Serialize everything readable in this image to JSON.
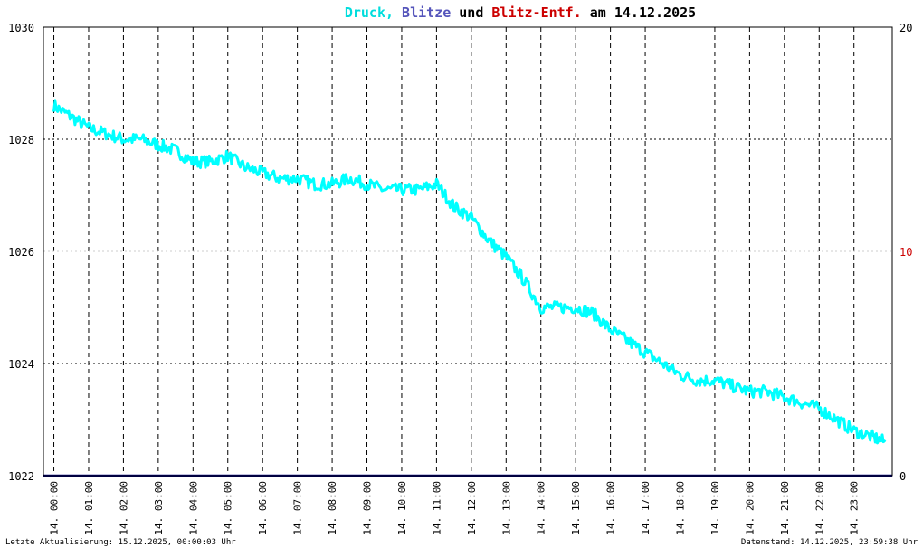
{
  "title": {
    "part1": "Druck,",
    "part2": "Blitze",
    "part3": "und",
    "part4": "Blitz-Entf.",
    "part5": "am 14.12.2025"
  },
  "colors": {
    "pressure": "#00ffff",
    "lightning": "#5555bb",
    "distance": "#cc0000",
    "text": "#000000",
    "baseline": "#000080",
    "grid": "#000000"
  },
  "footer": {
    "left": "Letzte Aktualisierung: 15.12.2025, 00:00:03 Uhr",
    "right": "Datenstand: 14.12.2025, 23:59:38 Uhr"
  },
  "chart_data": {
    "type": "line",
    "xlabel": "",
    "ylabel": "",
    "x_tick_labels": [
      "14. 00:00",
      "14. 01:00",
      "14. 02:00",
      "14. 03:00",
      "14. 04:00",
      "14. 05:00",
      "14. 06:00",
      "14. 07:00",
      "14. 08:00",
      "14. 09:00",
      "14. 10:00",
      "14. 11:00",
      "14. 12:00",
      "14. 13:00",
      "14. 14:00",
      "14. 15:00",
      "14. 16:00",
      "14. 17:00",
      "14. 18:00",
      "14. 19:00",
      "14. 20:00",
      "14. 21:00",
      "14. 22:00",
      "14. 23:00"
    ],
    "y_left": {
      "range": [
        1022,
        1030
      ],
      "ticks": [
        "1022",
        "1024",
        "1026",
        "1028",
        "1030"
      ]
    },
    "y_right": {
      "range": [
        0,
        20
      ],
      "ticks": [
        "0",
        "10",
        "20"
      ]
    },
    "grid": true,
    "series": [
      {
        "name": "Druck",
        "axis": "left",
        "x_hours": [
          0,
          0.5,
          1,
          1.5,
          2,
          2.5,
          3,
          3.5,
          4,
          4.5,
          5,
          5.5,
          6,
          6.5,
          7,
          7.5,
          8,
          8.5,
          9,
          9.5,
          10,
          10.5,
          11,
          11.5,
          12,
          12.5,
          13,
          13.5,
          14,
          14.5,
          15,
          15.5,
          16,
          16.5,
          17,
          17.5,
          18,
          18.5,
          19,
          19.5,
          20,
          20.5,
          21,
          21.5,
          22,
          22.5,
          23,
          23.5,
          23.9
        ],
        "values": [
          1028.6,
          1028.4,
          1028.2,
          1028.1,
          1028.0,
          1028.0,
          1027.9,
          1027.8,
          1027.6,
          1027.6,
          1027.7,
          1027.5,
          1027.4,
          1027.3,
          1027.3,
          1027.2,
          1027.2,
          1027.3,
          1027.2,
          1027.1,
          1027.1,
          1027.1,
          1027.2,
          1026.8,
          1026.6,
          1026.2,
          1025.9,
          1025.5,
          1025.0,
          1025.0,
          1025.0,
          1024.9,
          1024.6,
          1024.4,
          1024.2,
          1024.0,
          1023.8,
          1023.7,
          1023.7,
          1023.6,
          1023.5,
          1023.5,
          1023.4,
          1023.3,
          1023.2,
          1023.0,
          1022.8,
          1022.7,
          1022.6
        ]
      },
      {
        "name": "Blitze",
        "axis": "right",
        "x_hours": [
          0,
          23.9
        ],
        "values": [
          0,
          0
        ]
      }
    ]
  }
}
